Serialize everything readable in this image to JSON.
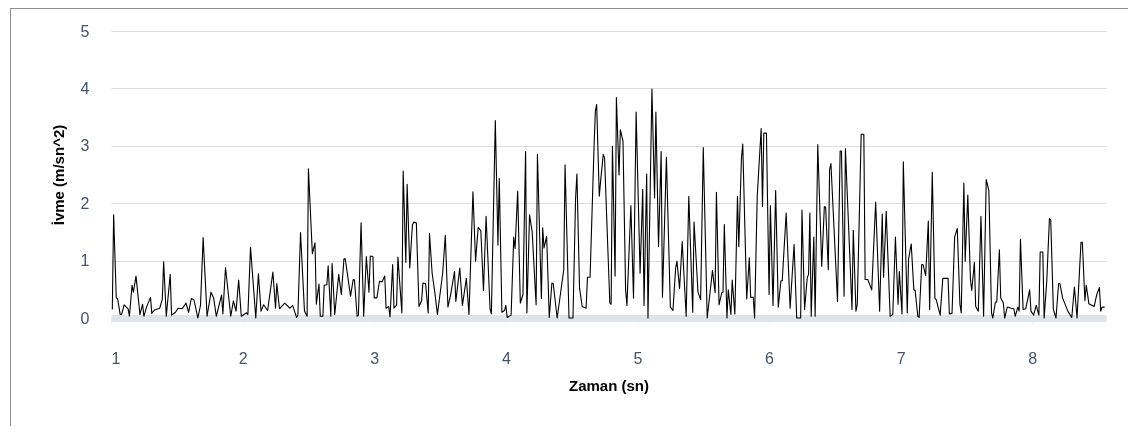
{
  "chart_data": {
    "type": "line",
    "xlabel": "Zaman (sn)",
    "ylabel": "İvme (m/sn^2)",
    "xlim": [
      1,
      8.56
    ],
    "xticks": [
      1,
      2,
      3,
      4,
      5,
      6,
      7,
      8
    ],
    "ylim": [
      0,
      5
    ],
    "yticks": [
      0,
      1,
      2,
      3,
      4,
      5
    ],
    "grid": "y",
    "marker": "none",
    "line_style": "solid",
    "series": [
      {
        "color": "#000000",
        "x": [
          1.01,
          1.02,
          1.04,
          1.05,
          1.07,
          1.08,
          1.1,
          1.13,
          1.14,
          1.16,
          1.17,
          1.19,
          1.22,
          1.24,
          1.25,
          1.27,
          1.3,
          1.31,
          1.33,
          1.37,
          1.39,
          1.4,
          1.42,
          1.45,
          1.46,
          1.49,
          1.51,
          1.54,
          1.57,
          1.59,
          1.61,
          1.63,
          1.66,
          1.68,
          1.7,
          1.73,
          1.76,
          1.78,
          1.8,
          1.84,
          1.85,
          1.87,
          1.91,
          1.93,
          1.95,
          1.97,
          1.99,
          2.03,
          2.04,
          2.06,
          2.1,
          2.12,
          2.14,
          2.16,
          2.19,
          2.23,
          2.25,
          2.26,
          2.28,
          2.32,
          2.36,
          2.38,
          2.41,
          2.42,
          2.44,
          2.47,
          2.49,
          2.5,
          2.53,
          2.55,
          2.56,
          2.58,
          2.59,
          2.61,
          2.62,
          2.64,
          2.65,
          2.67,
          2.68,
          2.7,
          2.73,
          2.75,
          2.77,
          2.78,
          2.82,
          2.84,
          2.85,
          2.87,
          2.88,
          2.9,
          2.92,
          2.94,
          2.96,
          2.97,
          2.99,
          3.0,
          3.02,
          3.04,
          3.06,
          3.08,
          3.09,
          3.11,
          3.12,
          3.14,
          3.15,
          3.17,
          3.18,
          3.21,
          3.22,
          3.24,
          3.25,
          3.27,
          3.29,
          3.3,
          3.32,
          3.34,
          3.36,
          3.37,
          3.39,
          3.41,
          3.42,
          3.44,
          3.46,
          3.48,
          3.52,
          3.54,
          3.56,
          3.58,
          3.61,
          3.62,
          3.65,
          3.67,
          3.7,
          3.72,
          3.75,
          3.77,
          3.79,
          3.81,
          3.83,
          3.85,
          3.88,
          3.89,
          3.92,
          3.94,
          3.95,
          3.97,
          3.99,
          4.0,
          4.01,
          4.04,
          4.06,
          4.07,
          4.09,
          4.11,
          4.13,
          4.15,
          4.16,
          4.18,
          4.2,
          4.23,
          4.24,
          4.27,
          4.28,
          4.29,
          4.31,
          4.33,
          4.35,
          4.36,
          4.39,
          4.44,
          4.45,
          4.48,
          4.51,
          4.53,
          4.54,
          4.56,
          4.58,
          4.61,
          4.62,
          4.64,
          4.67,
          4.68,
          4.69,
          4.71,
          4.72,
          4.74,
          4.75,
          4.79,
          4.8,
          4.81,
          4.83,
          4.84,
          4.86,
          4.87,
          4.89,
          4.91,
          4.92,
          4.95,
          4.97,
          4.99,
          5.02,
          5.04,
          5.05,
          5.07,
          5.08,
          5.11,
          5.13,
          5.14,
          5.16,
          5.18,
          5.19,
          5.22,
          5.25,
          5.27,
          5.29,
          5.3,
          5.32,
          5.34,
          5.37,
          5.39,
          5.42,
          5.43,
          5.46,
          5.48,
          5.5,
          5.53,
          5.57,
          5.59,
          5.6,
          5.62,
          5.64,
          5.65,
          5.66,
          5.68,
          5.69,
          5.71,
          5.72,
          5.74,
          5.76,
          5.77,
          5.79,
          5.8,
          5.83,
          5.85,
          5.86,
          5.88,
          5.89,
          5.91,
          5.94,
          5.95,
          5.96,
          5.98,
          6.0,
          6.01,
          6.03,
          6.05,
          6.07,
          6.09,
          6.1,
          6.13,
          6.16,
          6.19,
          6.21,
          6.24,
          6.25,
          6.27,
          6.29,
          6.3,
          6.31,
          6.32,
          6.34,
          6.35,
          6.37,
          6.4,
          6.42,
          6.43,
          6.45,
          6.46,
          6.47,
          6.52,
          6.54,
          6.55,
          6.57,
          6.58,
          6.63,
          6.64,
          6.66,
          6.67,
          6.7,
          6.72,
          6.73,
          6.75,
          6.78,
          6.81,
          6.84,
          6.86,
          6.87,
          6.89,
          6.92,
          6.94,
          6.96,
          6.98,
          6.99,
          7.01,
          7.02,
          7.05,
          7.06,
          7.08,
          7.1,
          7.11,
          7.13,
          7.14,
          7.16,
          7.17,
          7.19,
          7.21,
          7.22,
          7.24,
          7.26,
          7.27,
          7.3,
          7.32,
          7.36,
          7.37,
          7.39,
          7.41,
          7.43,
          7.45,
          7.46,
          7.48,
          7.49,
          7.51,
          7.53,
          7.54,
          7.56,
          7.57,
          7.59,
          7.61,
          7.63,
          7.65,
          7.67,
          7.69,
          7.7,
          7.72,
          7.73,
          7.75,
          7.76,
          7.78,
          7.79,
          7.81,
          7.84,
          7.86,
          7.87,
          7.89,
          7.9,
          7.91,
          7.93,
          7.95,
          7.98,
          7.99,
          8.01,
          8.03,
          8.05,
          8.06,
          8.08,
          8.09,
          8.11,
          8.13,
          8.14,
          8.16,
          8.18,
          8.2,
          8.21,
          8.23,
          8.27,
          8.3,
          8.32,
          8.34,
          8.37,
          8.38,
          8.4,
          8.41,
          8.43,
          8.47,
          8.49,
          8.51,
          8.52,
          8.53,
          8.55
        ],
        "values": [
          0.15,
          1.8,
          0.35,
          0.34,
          0.06,
          0.06,
          0.23,
          0.16,
          0.03,
          0.57,
          0.45,
          0.73,
          0.06,
          0.24,
          0.03,
          0.19,
          0.36,
          0.08,
          0.14,
          0.17,
          0.33,
          0.98,
          0.03,
          0.76,
          0.05,
          0.1,
          0.17,
          0.16,
          0.26,
          0.1,
          0.34,
          0.32,
          0,
          0.22,
          1.4,
          0.03,
          0.45,
          0.35,
          0.03,
          0.4,
          0.07,
          0.88,
          0.03,
          0.3,
          0.12,
          0.66,
          0.03,
          0.09,
          0.06,
          1.23,
          0,
          0.77,
          0.12,
          0.23,
          0.13,
          0.8,
          0.17,
          0.6,
          0.16,
          0.26,
          0.17,
          0.22,
          0.01,
          0.05,
          1.49,
          0.12,
          0.03,
          2.6,
          1.12,
          1.31,
          0.24,
          0.59,
          0.03,
          0.03,
          0.57,
          0.58,
          0.91,
          0.03,
          0.95,
          0.06,
          0.76,
          0.41,
          1.03,
          1.03,
          0.38,
          0.67,
          0.66,
          0.03,
          0.05,
          1.66,
          0.03,
          1.07,
          0.45,
          1.08,
          1.07,
          0.35,
          0.35,
          0.64,
          0.63,
          0.73,
          0.17,
          0.2,
          0.02,
          0.93,
          0.17,
          0.23,
          1.06,
          0.09,
          2.56,
          0.97,
          2.33,
          0.87,
          1.62,
          1.67,
          1.66,
          0.2,
          0.3,
          0.61,
          0.6,
          0.09,
          1.47,
          0.78,
          0.45,
          0.06,
          0.78,
          1.44,
          0.19,
          0.4,
          0.81,
          0.29,
          0.87,
          0.22,
          0.69,
          0.06,
          2.2,
          0.99,
          1.58,
          1.52,
          0.48,
          1.77,
          0.16,
          0.07,
          3.44,
          1.27,
          2.43,
          0.1,
          0.13,
          0.22,
          0.01,
          0.05,
          1.41,
          1.21,
          2.21,
          0.26,
          0.41,
          2.9,
          0.09,
          1.8,
          1.5,
          0.23,
          2.85,
          0.34,
          1.57,
          1.22,
          1.42,
          0.01,
          0.61,
          0.6,
          0,
          0.84,
          2.67,
          0,
          0,
          2.09,
          2.51,
          0.52,
          0.2,
          0.17,
          0.71,
          0.71,
          2.97,
          3.6,
          3.72,
          2.12,
          2.38,
          2.85,
          2.79,
          0.26,
          0.24,
          2.99,
          0.73,
          3.84,
          2.49,
          3.28,
          3.08,
          0.49,
          0.22,
          1.96,
          0.35,
          3.59,
          0.78,
          2.24,
          0.22,
          2.51,
          0,
          3.99,
          2.09,
          3.59,
          1.24,
          2.9,
          0.36,
          2.8,
          0.19,
          0.13,
          0.87,
          0.99,
          0.51,
          1.33,
          0.03,
          2.12,
          0.1,
          1.67,
          0.45,
          0.32,
          2.97,
          0,
          0.83,
          0.44,
          2.19,
          0.23,
          0.44,
          0.45,
          1.63,
          0,
          0.49,
          0.06,
          0.66,
          0.07,
          2.12,
          1.24,
          2.78,
          3.03,
          0.33,
          1.05,
          0.36,
          0.36,
          0,
          2.12,
          3.3,
          1.94,
          3.22,
          3.22,
          0.41,
          1.96,
          0.22,
          2.22,
          0.19,
          0.65,
          0.65,
          1.83,
          0.17,
          1.28,
          0,
          0,
          1.88,
          0.15,
          0.7,
          0.76,
          1.83,
          0.03,
          1.41,
          0.03,
          3.02,
          0.9,
          1.94,
          1.93,
          0.84,
          2.59,
          2.69,
          0.29,
          2.91,
          2.91,
          0.38,
          2.95,
          0.15,
          1.53,
          0.12,
          0.23,
          3.2,
          3.2,
          0.67,
          0.67,
          0.49,
          2.02,
          0.12,
          1.81,
          0.71,
          1.86,
          0.03,
          0.06,
          1.41,
          0.24,
          0.81,
          0.07,
          2.72,
          0.09,
          1.03,
          1.29,
          0.49,
          0.48,
          0.03,
          0.01,
          0.93,
          0.93,
          0.74,
          1.69,
          0.15,
          2.54,
          0.34,
          0.32,
          0.05,
          0.69,
          0.69,
          0.07,
          0.08,
          1.41,
          1.56,
          0.24,
          0.09,
          2.35,
          0.99,
          2.14,
          0.67,
          0.48,
          0.97,
          0.2,
          0.12,
          1.77,
          0.03,
          2.41,
          2.22,
          0.09,
          0,
          0.28,
          0.28,
          1.19,
          0.35,
          0.26,
          0,
          0.19,
          0.17,
          0.16,
          0.03,
          0.19,
          0.12,
          1.37,
          0.15,
          0.16,
          0.49,
          0.12,
          0.05,
          0.22,
          0.05,
          1.15,
          1.15,
          0,
          0.64,
          1.73,
          1.71,
          0.15,
          0,
          0.6,
          0.6,
          0.35,
          0.12,
          0.01,
          0.54,
          0,
          1.32,
          1.32,
          0.3,
          0.57,
          0.25,
          0.2,
          0.41,
          0.53,
          0.12,
          0.19,
          0.19
        ]
      }
    ]
  }
}
